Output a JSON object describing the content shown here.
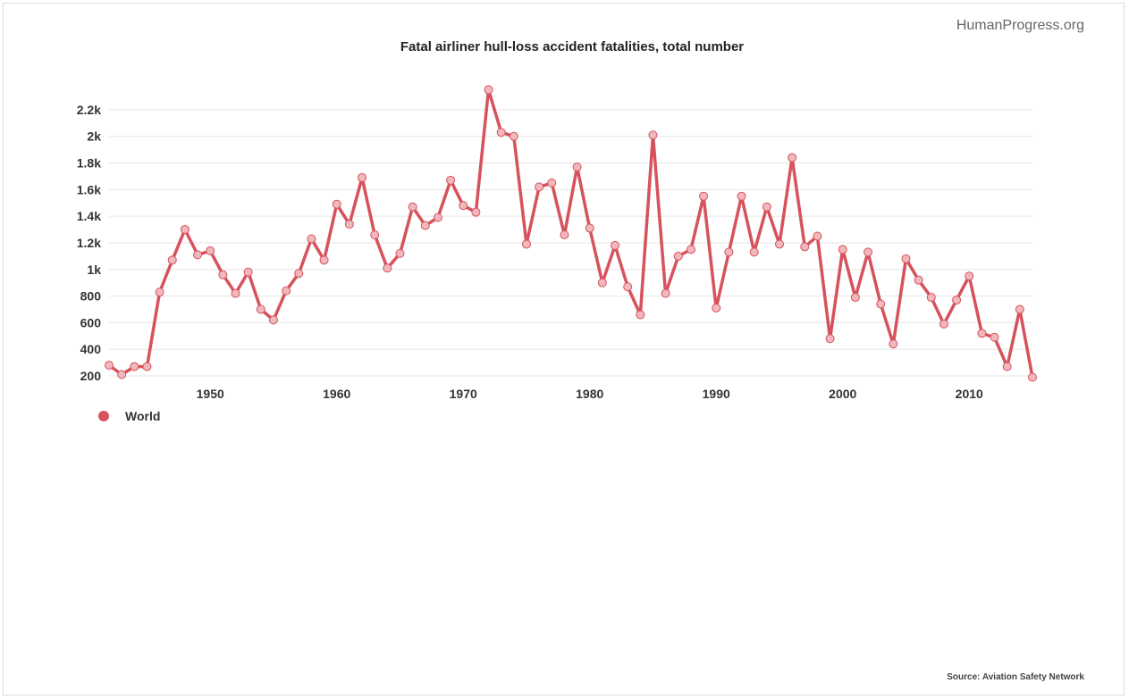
{
  "brand": "HumanProgress.org",
  "source": "Source: Aviation Safety Network",
  "colors": {
    "series": "#d6525c",
    "marker": "#f0b8bc",
    "grid": "#e6e6e6"
  },
  "chart_data": {
    "type": "line",
    "title": "Fatal airliner hull-loss accident fatalities, total number",
    "xlabel": "",
    "ylabel": "",
    "xlim": [
      1942,
      2015
    ],
    "ylim": [
      200,
      2300
    ],
    "x_ticks": [
      1950,
      1960,
      1970,
      1980,
      1990,
      2000,
      2010
    ],
    "x_tick_labels": [
      "1950",
      "1960",
      "1970",
      "1980",
      "1990",
      "2000",
      "2010"
    ],
    "y_ticks": [
      200,
      400,
      600,
      800,
      1000,
      1200,
      1400,
      1600,
      1800,
      2000,
      2200
    ],
    "y_tick_labels": [
      "200",
      "400",
      "600",
      "800",
      "1k",
      "1.2k",
      "1.4k",
      "1.6k",
      "1.8k",
      "2k",
      "2.2k"
    ],
    "grid": true,
    "legend_position": "bottom-left",
    "series": [
      {
        "name": "World",
        "x": [
          1942,
          1943,
          1944,
          1945,
          1946,
          1947,
          1948,
          1949,
          1950,
          1951,
          1952,
          1953,
          1954,
          1955,
          1956,
          1957,
          1958,
          1959,
          1960,
          1961,
          1962,
          1963,
          1964,
          1965,
          1966,
          1967,
          1968,
          1969,
          1970,
          1971,
          1972,
          1973,
          1974,
          1975,
          1976,
          1977,
          1978,
          1979,
          1980,
          1981,
          1982,
          1983,
          1984,
          1985,
          1986,
          1987,
          1988,
          1989,
          1990,
          1991,
          1992,
          1993,
          1994,
          1995,
          1996,
          1997,
          1998,
          1999,
          2000,
          2001,
          2002,
          2003,
          2004,
          2005,
          2006,
          2007,
          2008,
          2009,
          2010,
          2011,
          2012,
          2013,
          2014,
          2015
        ],
        "values": [
          280,
          210,
          270,
          270,
          830,
          1070,
          1300,
          1110,
          1140,
          960,
          820,
          980,
          700,
          620,
          840,
          970,
          1230,
          1070,
          1490,
          1340,
          1690,
          1260,
          1010,
          1120,
          1470,
          1330,
          1390,
          1670,
          1480,
          1430,
          2350,
          2030,
          2000,
          1190,
          1620,
          1650,
          1260,
          1770,
          1310,
          900,
          1180,
          870,
          660,
          2010,
          820,
          1100,
          1150,
          1550,
          710,
          1130,
          1550,
          1130,
          1470,
          1190,
          1840,
          1170,
          1250,
          480,
          1150,
          790,
          1130,
          740,
          440,
          1080,
          920,
          790,
          590,
          770,
          950,
          520,
          490,
          270,
          700,
          190
        ]
      }
    ]
  }
}
